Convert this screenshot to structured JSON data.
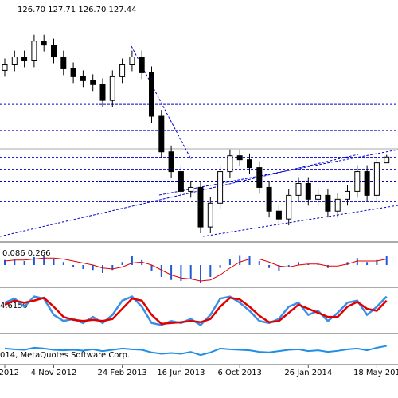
{
  "chart_data": {
    "type": "candlestick",
    "ohlc_label": "126.70 127.71 126.70 127.44",
    "categories": [
      "2012",
      null,
      null,
      null,
      null,
      "4 Nov 2012",
      null,
      null,
      null,
      null,
      null,
      null,
      "24 Feb 2013",
      null,
      null,
      null,
      null,
      null,
      "16 Jun 2013",
      null,
      null,
      null,
      null,
      null,
      "6 Oct 2013",
      null,
      null,
      null,
      null,
      null,
      null,
      "26 Jan 2014",
      null,
      null,
      null,
      null,
      null,
      null,
      "18 May 201",
      null
    ],
    "open": [
      138.4,
      139.1,
      140.1,
      139.6,
      142.1,
      141.6,
      140.1,
      138.6,
      137.6,
      137.1,
      136.6,
      134.6,
      137.6,
      139.1,
      140.1,
      138.1,
      132.6,
      128.1,
      125.6,
      123.1,
      123.6,
      118.6,
      121.6,
      125.6,
      127.6,
      127.1,
      126.1,
      123.6,
      120.6,
      119.6,
      122.6,
      124.1,
      122.1,
      122.6,
      120.6,
      122.1,
      123.1,
      125.6,
      122.6,
      126.7
    ],
    "high": [
      139.9,
      140.9,
      140.9,
      142.9,
      142.9,
      142.4,
      140.9,
      139.4,
      138.4,
      137.9,
      137.4,
      138.4,
      139.9,
      140.9,
      140.9,
      138.9,
      133.4,
      128.9,
      126.4,
      124.4,
      124.4,
      122.4,
      126.4,
      128.4,
      128.4,
      127.9,
      126.9,
      124.4,
      121.4,
      123.4,
      124.9,
      124.9,
      123.4,
      123.4,
      122.9,
      123.9,
      126.4,
      126.4,
      127.5,
      127.71
    ],
    "low": [
      137.6,
      138.3,
      138.8,
      138.8,
      140.8,
      139.3,
      137.8,
      136.8,
      136.3,
      135.8,
      133.8,
      133.8,
      136.8,
      138.3,
      137.3,
      131.8,
      127.3,
      124.8,
      122.3,
      122.3,
      117.8,
      117.8,
      120.8,
      124.8,
      126.3,
      125.3,
      122.8,
      119.8,
      118.8,
      118.8,
      121.8,
      121.3,
      121.3,
      119.8,
      119.8,
      121.3,
      122.3,
      121.8,
      121.8,
      126.7
    ],
    "close": [
      139.1,
      140.1,
      139.6,
      142.1,
      141.6,
      140.1,
      138.6,
      137.6,
      137.1,
      136.6,
      134.6,
      137.6,
      139.1,
      140.1,
      138.1,
      132.6,
      128.1,
      125.6,
      123.1,
      123.6,
      118.6,
      121.6,
      125.6,
      127.6,
      127.1,
      126.1,
      123.6,
      120.6,
      119.6,
      122.6,
      124.1,
      122.1,
      122.6,
      120.6,
      122.1,
      123.1,
      125.6,
      122.6,
      126.7,
      127.44
    ],
    "ylim": [
      117.1,
      147.1
    ],
    "levels": [
      134.1,
      130.8,
      127.4,
      125.9,
      124.3,
      121.8
    ],
    "level_color": "#0000cc",
    "macd": {
      "label": "0.086 0.266",
      "ylim": [
        -2,
        2
      ],
      "hist_color": "#1e5bd8",
      "signal_color": "#e00000",
      "histogram": [
        0.5,
        0.6,
        0.4,
        0.8,
        0.9,
        0.6,
        0.3,
        -0.2,
        -0.4,
        -0.5,
        -0.8,
        -0.5,
        0.3,
        0.9,
        0.5,
        -0.6,
        -1.2,
        -1.5,
        -1.6,
        -1.4,
        -1.8,
        -1.2,
        -0.3,
        0.6,
        1.0,
        0.9,
        0.4,
        -0.3,
        -0.6,
        -0.2,
        0.3,
        0.1,
        0.1,
        -0.3,
        0.0,
        0.3,
        0.7,
        0.3,
        0.5,
        0.9
      ],
      "signal": [
        0.4,
        0.5,
        0.5,
        0.6,
        0.7,
        0.7,
        0.6,
        0.4,
        0.2,
        0.0,
        -0.3,
        -0.4,
        -0.2,
        0.2,
        0.3,
        0.0,
        -0.5,
        -1.0,
        -1.3,
        -1.4,
        -1.6,
        -1.5,
        -1.0,
        -0.3,
        0.3,
        0.6,
        0.6,
        0.3,
        -0.1,
        -0.2,
        0.0,
        0.1,
        0.1,
        -0.1,
        -0.1,
        0.1,
        0.4,
        0.4,
        0.4,
        0.6
      ]
    },
    "stochastic": {
      "label": "4.6159",
      "ylim": [
        0,
        100
      ],
      "main_color": "#3a8ee6",
      "signal_color": "#e00000",
      "main": [
        70,
        80,
        60,
        85,
        80,
        40,
        25,
        30,
        20,
        35,
        20,
        40,
        75,
        85,
        60,
        20,
        15,
        25,
        20,
        30,
        15,
        40,
        80,
        85,
        70,
        50,
        25,
        20,
        30,
        60,
        70,
        40,
        50,
        25,
        45,
        70,
        75,
        40,
        60,
        85
      ],
      "signal": [
        65,
        75,
        70,
        75,
        82,
        60,
        35,
        28,
        25,
        28,
        25,
        30,
        55,
        80,
        75,
        40,
        18,
        20,
        22,
        25,
        22,
        30,
        60,
        82,
        78,
        60,
        38,
        22,
        25,
        45,
        65,
        55,
        45,
        35,
        35,
        60,
        72,
        55,
        50,
        75
      ]
    },
    "indicator3": {
      "label": "014, MetaQuotes Software Corp.",
      "ylim": [
        0,
        100
      ],
      "color": "#1e8ee6",
      "values": [
        55,
        52,
        50,
        58,
        55,
        50,
        48,
        50,
        47,
        52,
        45,
        50,
        55,
        52,
        50,
        40,
        35,
        38,
        35,
        42,
        30,
        40,
        55,
        52,
        50,
        48,
        42,
        40,
        45,
        50,
        52,
        45,
        48,
        42,
        46,
        52,
        55,
        48,
        58,
        65
      ]
    }
  }
}
